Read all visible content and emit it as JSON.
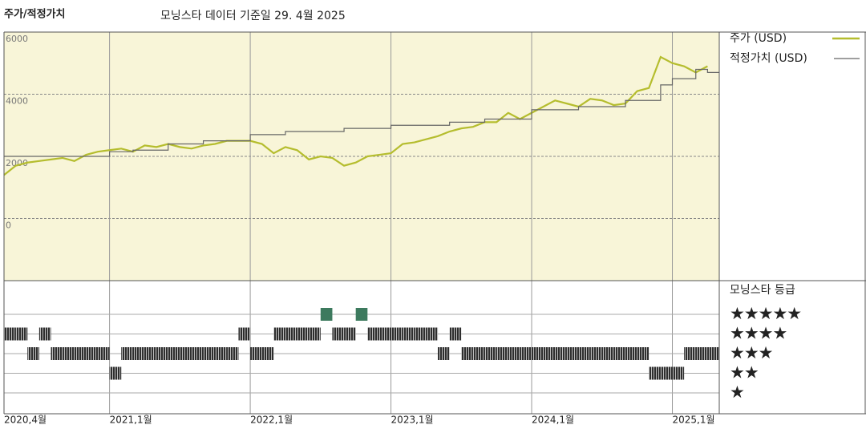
{
  "chart_data": {
    "type": "line",
    "title": "주가/적정가치",
    "subtitle": "모닝스타 데이터 기준일 29. 4월 2025",
    "x": [
      "2020-04",
      "2020-05",
      "2020-06",
      "2020-07",
      "2020-08",
      "2020-09",
      "2020-10",
      "2020-11",
      "2020-12",
      "2021-01",
      "2021-02",
      "2021-03",
      "2021-04",
      "2021-05",
      "2021-06",
      "2021-07",
      "2021-08",
      "2021-09",
      "2021-10",
      "2021-11",
      "2021-12",
      "2022-01",
      "2022-02",
      "2022-03",
      "2022-04",
      "2022-05",
      "2022-06",
      "2022-07",
      "2022-08",
      "2022-09",
      "2022-10",
      "2022-11",
      "2022-12",
      "2023-01",
      "2023-02",
      "2023-03",
      "2023-04",
      "2023-05",
      "2023-06",
      "2023-07",
      "2023-08",
      "2023-09",
      "2023-10",
      "2023-11",
      "2023-12",
      "2024-01",
      "2024-02",
      "2024-03",
      "2024-04",
      "2024-05",
      "2024-06",
      "2024-07",
      "2024-08",
      "2024-09",
      "2024-10",
      "2024-11",
      "2024-12",
      "2025-01",
      "2025-02",
      "2025-03",
      "2025-04"
    ],
    "xlim": [
      "2020-04",
      "2025-05"
    ],
    "xticks": [
      {
        "value": "2020-04",
        "label": "2020,4월"
      },
      {
        "value": "2021-01",
        "label": "2021,1월"
      },
      {
        "value": "2022-01",
        "label": "2022,1월"
      },
      {
        "value": "2023-01",
        "label": "2023,1월"
      },
      {
        "value": "2024-01",
        "label": "2024,1월"
      },
      {
        "value": "2025-01",
        "label": "2025,1월"
      }
    ],
    "ylim": [
      -2000,
      6000
    ],
    "yticks": [
      0,
      2000,
      4000,
      6000
    ],
    "grid": true,
    "series": [
      {
        "name": "주가 (USD)",
        "color": "#b5bd2e",
        "step": false,
        "values": [
          1400,
          1700,
          1800,
          1850,
          1900,
          1950,
          1850,
          2050,
          2150,
          2200,
          2250,
          2150,
          2350,
          2300,
          2400,
          2300,
          2250,
          2350,
          2400,
          2500,
          2500,
          2500,
          2400,
          2100,
          2300,
          2200,
          1900,
          2000,
          1950,
          1700,
          1800,
          2000,
          2050,
          2100,
          2400,
          2450,
          2550,
          2650,
          2800,
          2900,
          2950,
          3100,
          3100,
          3400,
          3200,
          3400,
          3600,
          3800,
          3700,
          3600,
          3850,
          3800,
          3650,
          3700,
          4100,
          4200,
          5200,
          5000,
          4900,
          4700,
          4900
        ]
      },
      {
        "name": "적정가치 (USD)",
        "color": "#666666",
        "step": true,
        "values": [
          2000,
          2000,
          2000,
          2000,
          2000,
          2000,
          2000,
          2000,
          2000,
          2150,
          2150,
          2200,
          2200,
          2200,
          2400,
          2400,
          2400,
          2500,
          2500,
          2500,
          2500,
          2700,
          2700,
          2700,
          2800,
          2800,
          2800,
          2800,
          2800,
          2900,
          2900,
          2900,
          2900,
          3000,
          3000,
          3000,
          3000,
          3000,
          3100,
          3100,
          3100,
          3200,
          3200,
          3200,
          3200,
          3500,
          3500,
          3500,
          3500,
          3600,
          3600,
          3600,
          3600,
          3800,
          3800,
          3800,
          4300,
          4500,
          4500,
          4800,
          4700
        ]
      }
    ],
    "rating": {
      "name": "모닝스타 등급",
      "color": "#2e2e2e",
      "top_color": "#3d7a5e",
      "values": [
        4,
        4,
        3,
        4,
        3,
        3,
        3,
        3,
        3,
        2,
        3,
        3,
        3,
        3,
        3,
        3,
        3,
        3,
        3,
        3,
        4,
        3,
        3,
        4,
        4,
        4,
        4,
        5,
        4,
        4,
        5,
        4,
        4,
        4,
        4,
        4,
        4,
        3,
        4,
        3,
        3,
        3,
        3,
        3,
        3,
        3,
        3,
        3,
        3,
        3,
        3,
        3,
        3,
        3,
        3,
        2,
        2,
        2,
        3,
        3,
        3
      ]
    },
    "rating_ticks": [
      {
        "value": 5,
        "label": "★★★★★"
      },
      {
        "value": 4,
        "label": "★★★★"
      },
      {
        "value": 3,
        "label": "★★★"
      },
      {
        "value": 2,
        "label": "★★"
      },
      {
        "value": 1,
        "label": "★"
      }
    ]
  }
}
